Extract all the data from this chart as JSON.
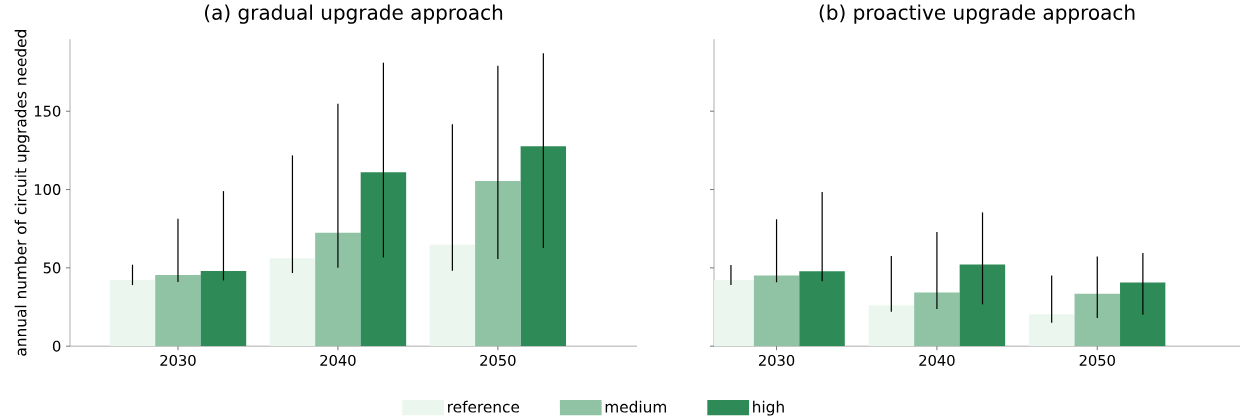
{
  "chart_data": [
    {
      "type": "bar",
      "title": "(a) gradual upgrade approach",
      "ylabel": "annual number of circuit upgrades needed",
      "categories": [
        "2030",
        "2040",
        "2050"
      ],
      "ylim": [
        0,
        196
      ],
      "yticks": [
        0,
        50,
        100,
        150
      ],
      "legend": "bottom",
      "series": [
        {
          "name": "reference",
          "color": "#ebf7ee",
          "values": [
            42.3,
            56.2,
            64.8
          ],
          "errors": [
            [
              39,
              52
            ],
            [
              46.7,
              121.8
            ],
            [
              48.2,
              141.6
            ]
          ]
        },
        {
          "name": "medium",
          "color": "#8fc3a4",
          "values": [
            45.5,
            72.4,
            105.4
          ],
          "errors": [
            [
              41,
              81.4
            ],
            [
              50.1,
              154.8
            ],
            [
              55.7,
              179
            ]
          ]
        },
        {
          "name": "high",
          "color": "#2e8b57",
          "values": [
            48,
            111,
            127.6
          ],
          "errors": [
            [
              42,
              99
            ],
            [
              56.7,
              181
            ],
            [
              62.6,
              187
            ]
          ]
        }
      ]
    },
    {
      "type": "bar",
      "title": "(b) proactive upgrade approach",
      "categories": [
        "2030",
        "2040",
        "2050"
      ],
      "ylim": [
        0,
        196
      ],
      "yticks": [
        0,
        50,
        100,
        150
      ],
      "tick_labels": "x",
      "series": [
        {
          "color": "#ebf7ee",
          "values": [
            42.2,
            26.2,
            20.4
          ],
          "errors": [
            [
              39,
              51.8
            ],
            [
              22,
              57.6
            ],
            [
              15,
              45.1
            ]
          ]
        },
        {
          "color": "#8fc3a4",
          "values": [
            45.1,
            34.3,
            33.4
          ],
          "errors": [
            [
              40.8,
              81
            ],
            [
              23.8,
              72.9
            ],
            [
              17.9,
              57.2
            ]
          ]
        },
        {
          "color": "#2e8b57",
          "values": [
            47.8,
            52.2,
            40.6
          ],
          "errors": [
            [
              41.5,
              98.4
            ],
            [
              26.7,
              85.4
            ],
            [
              20,
              59.4
            ]
          ]
        }
      ]
    }
  ]
}
